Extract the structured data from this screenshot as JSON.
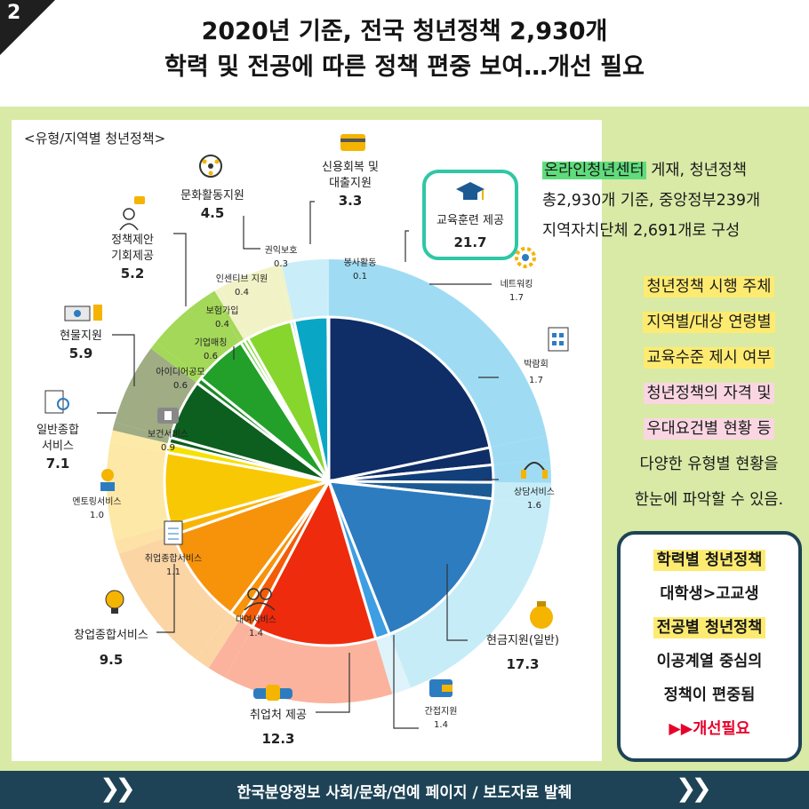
{
  "badge_number": "2",
  "title": {
    "line1": "2020년 기준, 전국 청년정책 2,930개",
    "line2": "학력 및 전공에 따른 정책 편중 보여…개선 필요"
  },
  "chart_data": {
    "type": "pie",
    "title": "<유형/지역별 청년정책>",
    "slices": [
      {
        "label": "교육훈련 제공",
        "value": 21.7,
        "color": "#0f2d66",
        "outer": "#9fdcf3"
      },
      {
        "label": "네트워킹",
        "value": 1.7,
        "color": "#0f2d66",
        "outer": "#9fdcf3"
      },
      {
        "label": "박람회",
        "value": 1.7,
        "color": "#123e7a",
        "outer": "#9fdcf3"
      },
      {
        "label": "상담서비스",
        "value": 1.6,
        "color": "#1c5a93",
        "outer": "#c6ecf8"
      },
      {
        "label": "현금지원(일반)",
        "value": 17.3,
        "color": "#2d7cc0",
        "outer": "#c6ecf8"
      },
      {
        "label": "간접지원",
        "value": 1.4,
        "color": "#3d9ee3",
        "outer": "#dff3fb"
      },
      {
        "label": "취업처 제공",
        "value": 12.3,
        "color": "#ee2b0c",
        "outer": "#fbb39d"
      },
      {
        "label": "대여서비스",
        "value": 1.4,
        "color": "#f35d07",
        "outer": "#fbb39d"
      },
      {
        "label": "취업종합서비스",
        "value": 1.1,
        "color": "#f6930b",
        "outer": "#fcd5a5"
      },
      {
        "label": "창업종합서비스",
        "value": 9.5,
        "color": "#f6930b",
        "outer": "#fcd5a5"
      },
      {
        "label": "멘토링서비스",
        "value": 1.0,
        "color": "#f9b304",
        "outer": "#fde1a6"
      },
      {
        "label": "일반종합 서비스",
        "value": 7.1,
        "color": "#f9c804",
        "outer": "#fde8a8"
      },
      {
        "label": "보건서비스",
        "value": 0.9,
        "color": "#f4e202",
        "outer": "#fdeaa8"
      },
      {
        "label": "아이디어공모",
        "value": 0.6,
        "color": "#0c5f1e",
        "outer": "#9fac84"
      },
      {
        "label": "현물지원",
        "value": 5.9,
        "color": "#0c5f1e",
        "outer": "#9fac84"
      },
      {
        "label": "기업매칭",
        "value": 0.6,
        "color": "#1c8a23",
        "outer": "#a4d859"
      },
      {
        "label": "정책제안 기회제공",
        "value": 5.2,
        "color": "#22a02a",
        "outer": "#a4d859"
      },
      {
        "label": "보험가입",
        "value": 0.4,
        "color": "#56c92c",
        "outer": "#a4d859"
      },
      {
        "label": "인센티브 지원",
        "value": 0.4,
        "color": "#86d62e",
        "outer": "#f1f3c7"
      },
      {
        "label": "문화활동지원",
        "value": 4.5,
        "color": "#86d62e",
        "outer": "#f1f3c7"
      },
      {
        "label": "권익보호",
        "value": 0.3,
        "color": "#0aa6c6",
        "outer": "#f1f3c7"
      },
      {
        "label": "신용회복 및 대출지원",
        "value": 3.3,
        "color": "#0aa6c6",
        "outer": "#c9edf9"
      },
      {
        "label": "봉사활동",
        "value": 0.1,
        "color": "#0aa6c6",
        "outer": "#c9edf9"
      }
    ]
  },
  "labels": {
    "l_edu_name": "교육훈련 제공",
    "l_edu_val": "21.7",
    "l_credit_name1": "신용회복 및",
    "l_credit_name2": "대출지원",
    "l_credit_val": "3.3",
    "l_culture_name": "문화활동지원",
    "l_culture_val": "4.5",
    "l_policy_name1": "정책제안",
    "l_policy_name2": "기회제공",
    "l_policy_val": "5.2",
    "l_goods_name": "현물지원",
    "l_goods_val": "5.9",
    "l_general_name1": "일반종합",
    "l_general_name2": "서비스",
    "l_general_val": "7.1",
    "l_mentor_name": "멘토링서비스",
    "l_mentor_val": "1.0",
    "l_jobsvc_name": "취업종합서비스",
    "l_jobsvc_val": "1.1",
    "l_startup_name": "창업종합서비스",
    "l_startup_val": "9.5",
    "l_rental_name": "대여서비스",
    "l_rental_val": "1.4",
    "l_job_name": "취업처 제공",
    "l_job_val": "12.3",
    "l_indirect_name": "간접지원",
    "l_indirect_val": "1.4",
    "l_cash_name": "현금지원(일반)",
    "l_cash_val": "17.3",
    "l_counsel_name": "상담서비스",
    "l_counsel_val": "1.6",
    "l_fair_name": "박람회",
    "l_fair_val": "1.7",
    "l_network_name": "네트워킹",
    "l_network_val": "1.7",
    "l_rights_name": "권익보호",
    "l_rights_val": "0.3",
    "l_volunteer_name": "봉사활동",
    "l_volunteer_val": "0.1",
    "l_incentive_name": "인센티브 지원",
    "l_incentive_val": "0.4",
    "l_insure_name": "보험가입",
    "l_insure_val": "0.4",
    "l_matching_name": "기업매칭",
    "l_matching_val": "0.6",
    "l_idea_name": "아이디어공모",
    "l_idea_val": "0.6",
    "l_health_name": "보건서비스",
    "l_health_val": "0.9"
  },
  "info": {
    "highlight": "온라인청년센터",
    "line1_rest": " 게재, 청년정책",
    "line2": "총2,930개 기준, 중앙정부239개",
    "line3": "지역자치단체 2,691개로 구성"
  },
  "mid_list": {
    "item1": "청년정책 시행 주체",
    "item2": "지역별/대상 연령별",
    "item3": "교육수준 제시 여부",
    "item4": "청년정책의 자격 및",
    "item5": "우대요건별 현황 등",
    "item6": "다양한 유형별 현황을",
    "item7": "한눈에 파악할 수 있음."
  },
  "box": {
    "line1": "학력별 청년정책",
    "line2": "대학생>고교생",
    "line3": "전공별 청년정책",
    "line4": "이공계열 중심의",
    "line5": "정책이 편중됨",
    "line6": "▶▶개선필요"
  },
  "footer": {
    "text": "한국분양정보 사회/문화/연예 페이지 / 보도자료 발췌",
    "left_chevron": "❯❯",
    "right_chevron": "❯❯"
  }
}
